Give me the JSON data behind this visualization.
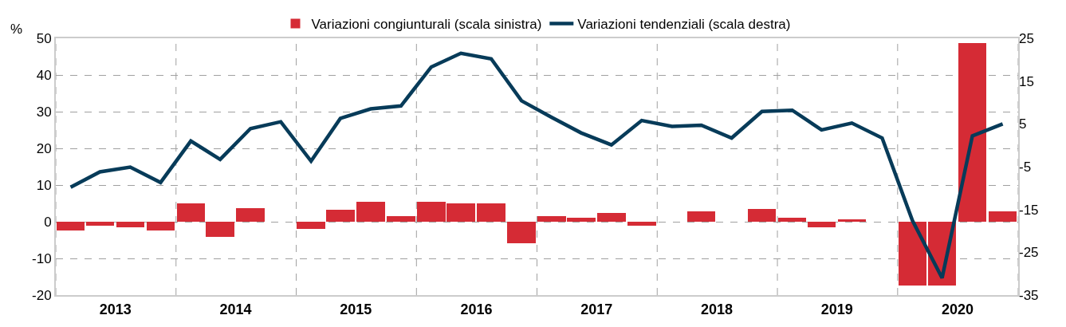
{
  "chart_data": {
    "type": "bar",
    "ylabel": "%",
    "x": [
      "2013-02-15",
      "2013-05-15",
      "2013-08-15",
      "2013-11-15",
      "2014-02-15",
      "2014-05-15",
      "2014-08-15",
      "2014-11-15",
      "2015-02-15",
      "2015-05-15",
      "2015-08-15",
      "2015-11-15",
      "2016-02-15",
      "2016-05-15",
      "2016-08-15",
      "2016-11-15",
      "2017-02-15",
      "2017-05-15",
      "2017-08-15",
      "2017-11-15",
      "2018-02-15",
      "2018-05-15",
      "2018-08-15",
      "2018-11-15",
      "2019-02-15",
      "2019-05-15",
      "2019-08-15",
      "2019-11-15",
      "2020-02-15",
      "2020-05-15",
      "2020-08-15",
      "2020-11-15"
    ],
    "series": [
      {
        "name": "Variazioni congiunturali (scala sinistra)",
        "color": "#d52b35",
        "values": [
          -2.3,
          -1.0,
          -1.5,
          -2.3,
          5.1,
          -4.1,
          3.8,
          0,
          -1.9,
          3.3,
          5.5,
          1.5,
          5.5,
          5.1,
          5.1,
          -5.9,
          1.5,
          1.1,
          2.4,
          -1.0,
          0,
          2.9,
          0,
          3.4,
          1.1,
          -1.5,
          0.7,
          0,
          -17.4,
          -17.4,
          48.8,
          2.9
        ]
      },
      {
        "name": "Variazioni tendenziali (scala destra)",
        "type": "line",
        "axis": "y2",
        "color": "#073b59",
        "values": [
          -9.8,
          -6.2,
          -5.1,
          -8.7,
          1.0,
          -3.3,
          3.9,
          5.5,
          -3.7,
          6.3,
          8.5,
          9.2,
          18.3,
          21.5,
          20.2,
          10.4,
          6.5,
          2.9,
          0.1,
          5.8,
          4.4,
          4.7,
          1.7,
          7.9,
          8.2,
          3.6,
          5.2,
          1.7,
          -17.6,
          -31.0,
          2.2,
          5.0
        ]
      }
    ],
    "xlim": [
      "2013-01-01",
      "2021-01-01"
    ],
    "xticks": [
      {
        "value": "2013-01-01",
        "label": null
      },
      {
        "value": "2013-07-01",
        "label": "2013"
      },
      {
        "value": "2014-01-01",
        "label": null
      },
      {
        "value": "2014-07-01",
        "label": "2014"
      },
      {
        "value": "2015-01-01",
        "label": null
      },
      {
        "value": "2015-07-01",
        "label": "2015"
      },
      {
        "value": "2016-01-01",
        "label": null
      },
      {
        "value": "2016-07-01",
        "label": "2016"
      },
      {
        "value": "2017-01-01",
        "label": null
      },
      {
        "value": "2017-07-01",
        "label": "2017"
      },
      {
        "value": "2018-01-01",
        "label": null
      },
      {
        "value": "2018-07-01",
        "label": "2018"
      },
      {
        "value": "2019-01-01",
        "label": null
      },
      {
        "value": "2019-07-01",
        "label": "2019"
      },
      {
        "value": "2020-01-01",
        "label": null
      },
      {
        "value": "2020-07-01",
        "label": "2020"
      },
      {
        "value": "2021-01-01",
        "label": null
      }
    ],
    "ylim": [
      -20,
      50
    ],
    "yticks": [
      -20,
      -10,
      0,
      10,
      20,
      30,
      40,
      50
    ],
    "y2lim": [
      -35,
      25
    ],
    "y2ticks": [
      -35,
      -25,
      -15,
      -5,
      5,
      15,
      25
    ],
    "grid": true,
    "legend": "top",
    "line_style": "solid"
  }
}
